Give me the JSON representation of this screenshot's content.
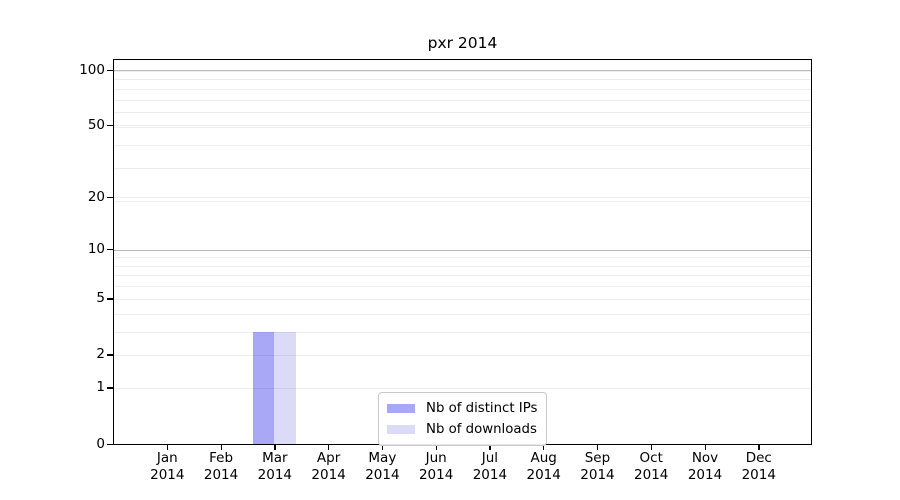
{
  "chart_data": {
    "type": "bar",
    "title": "pxr 2014",
    "categories": [
      "Jan",
      "Feb",
      "Mar",
      "Apr",
      "May",
      "Jun",
      "Jul",
      "Aug",
      "Sep",
      "Oct",
      "Nov",
      "Dec"
    ],
    "x_year_label": "2014",
    "series": [
      {
        "name": "Nb of distinct IPs",
        "color": "#a8a8f7",
        "values": [
          0,
          0,
          3,
          0,
          0,
          0,
          0,
          0,
          0,
          0,
          0,
          0
        ]
      },
      {
        "name": "Nb of downloads",
        "color": "#dbdbf8",
        "values": [
          0,
          0,
          3,
          0,
          0,
          0,
          0,
          0,
          0,
          0,
          0,
          0
        ]
      }
    ],
    "y_scale": "log1p",
    "y_major_ticks": [
      0,
      1,
      2,
      5,
      10,
      20,
      50,
      100
    ],
    "y_minor_ticks": [
      3,
      4,
      6,
      7,
      8,
      9,
      19,
      29,
      39,
      49,
      59,
      69,
      79,
      89,
      99
    ],
    "y_strong_gridlines": [
      10,
      100
    ],
    "ylim": [
      0,
      100
    ],
    "xlabel": "",
    "ylabel": "",
    "grid": true,
    "legend_position": "lower center"
  }
}
